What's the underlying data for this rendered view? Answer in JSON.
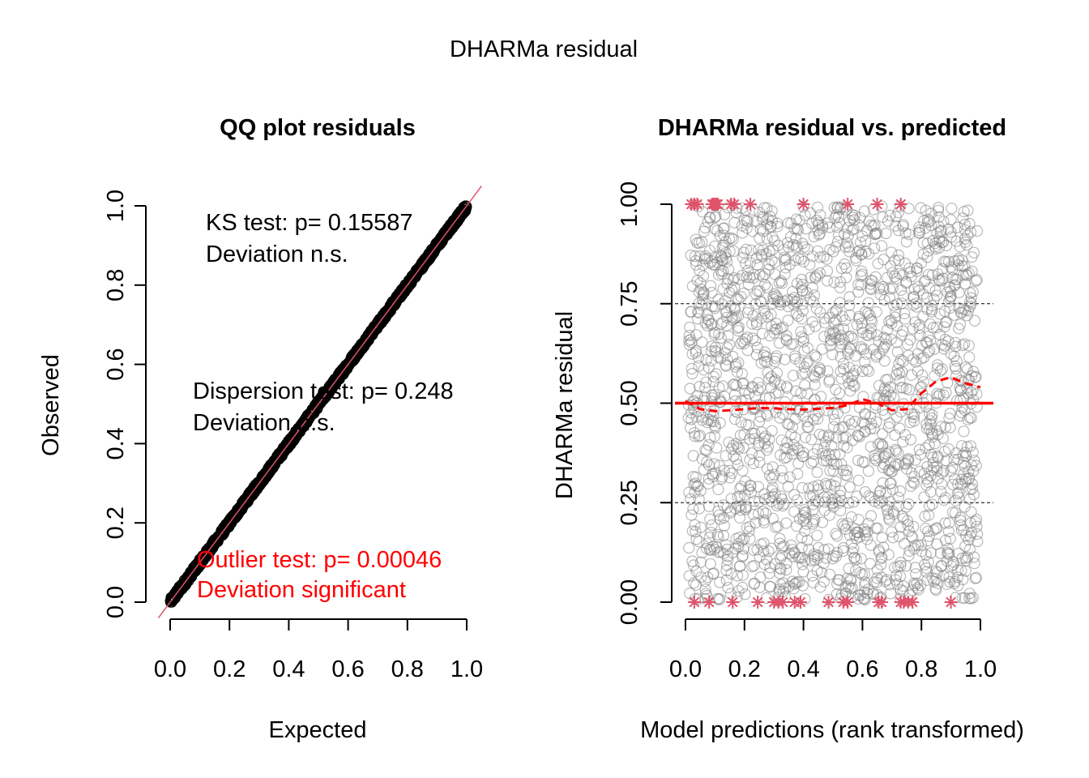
{
  "figure": {
    "title": "DHARMa residual"
  },
  "chart_data": [
    {
      "type": "scatter",
      "title": "QQ plot residuals",
      "xlabel": "Expected",
      "ylabel": "Observed",
      "xlim": [
        0,
        1
      ],
      "ylim": [
        0,
        1
      ],
      "xticks": [
        "0.0",
        "0.2",
        "0.4",
        "0.6",
        "0.8",
        "1.0"
      ],
      "yticks": [
        "0.0",
        "0.2",
        "0.4",
        "0.6",
        "0.8",
        "1.0"
      ],
      "series": [
        {
          "values_description": "uniform QQ points along diagonal",
          "x": [
            0.0,
            1.0
          ],
          "y": [
            0.0,
            1.0
          ]
        }
      ],
      "reference_line": {
        "color": "#DF536B",
        "slope": 1,
        "intercept": 0
      },
      "annotations": {
        "ks_line1": "KS test: p= 0.15587",
        "ks_line2": "Deviation  n.s.",
        "disp_line1": "Dispersion test: p= 0.248",
        "disp_line2": "Deviation  n.s.",
        "out_line1": "Outlier test: p= 0.00046",
        "out_line2": "Deviation  significant"
      },
      "colors": {
        "points": "#000000",
        "significant": "#ff0000"
      }
    },
    {
      "type": "scatter",
      "title": "DHARMa residual vs. predicted",
      "xlabel": "Model predictions (rank transformed)",
      "ylabel": "DHARMa residual",
      "xlim": [
        0,
        1
      ],
      "ylim": [
        0,
        1
      ],
      "xticks": [
        "0.0",
        "0.2",
        "0.4",
        "0.6",
        "0.8",
        "1.0"
      ],
      "yticks": [
        "0.00",
        "0.25",
        "0.50",
        "0.75",
        "1.00"
      ],
      "grid": "dashed horizontal at 0.25 and 0.75",
      "reference_line": {
        "y": 0.5,
        "color": "#ff0000"
      },
      "smooth_line": {
        "color": "#ff0000",
        "x": [
          0.0,
          0.05,
          0.1,
          0.15,
          0.2,
          0.25,
          0.3,
          0.35,
          0.4,
          0.45,
          0.5,
          0.55,
          0.6,
          0.65,
          0.7,
          0.75,
          0.8,
          0.85,
          0.9,
          0.95,
          1.0
        ],
        "y": [
          0.505,
          0.485,
          0.48,
          0.482,
          0.485,
          0.488,
          0.487,
          0.485,
          0.484,
          0.486,
          0.488,
          0.495,
          0.51,
          0.5,
          0.482,
          0.485,
          0.525,
          0.555,
          0.565,
          0.55,
          0.54
        ]
      },
      "outliers_top_x": [
        0.02,
        0.03,
        0.04,
        0.09,
        0.095,
        0.1,
        0.105,
        0.11,
        0.155,
        0.165,
        0.22,
        0.4,
        0.55,
        0.65,
        0.73
      ],
      "outliers_bottom_x": [
        0.03,
        0.08,
        0.16,
        0.245,
        0.3,
        0.315,
        0.33,
        0.37,
        0.39,
        0.485,
        0.535,
        0.55,
        0.655,
        0.665,
        0.73,
        0.74,
        0.755,
        0.77,
        0.9
      ],
      "colors": {
        "points": "#7f7f7f",
        "outliers": "#DF536B",
        "reference": "#ff0000"
      }
    }
  ]
}
